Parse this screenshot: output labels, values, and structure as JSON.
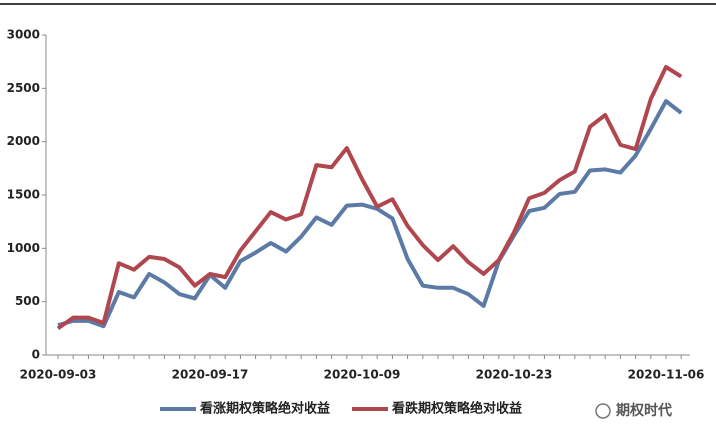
{
  "chart_data": {
    "type": "line",
    "categories": [
      "2020-09-03",
      null,
      null,
      null,
      null,
      null,
      null,
      null,
      null,
      null,
      "2020-09-17",
      null,
      null,
      null,
      null,
      null,
      null,
      null,
      null,
      null,
      "2020-10-09",
      null,
      null,
      null,
      null,
      null,
      null,
      null,
      null,
      null,
      "2020-10-23",
      null,
      null,
      null,
      null,
      null,
      null,
      null,
      null,
      null,
      "2020-11-06",
      null
    ],
    "series": [
      {
        "name": "看涨期权策略绝对收益",
        "color": "#5b7aa6",
        "values": [
          280,
          320,
          320,
          270,
          590,
          540,
          760,
          680,
          570,
          530,
          750,
          630,
          880,
          960,
          1050,
          970,
          1110,
          1290,
          1220,
          1400,
          1410,
          1370,
          1280,
          900,
          650,
          630,
          630,
          570,
          460,
          880,
          1120,
          1350,
          1380,
          1510,
          1530,
          1730,
          1740,
          1710,
          1870,
          2120,
          2380,
          2270
        ]
      },
      {
        "name": "看跌期权策略绝对收益",
        "color": "#b0474f",
        "values": [
          250,
          350,
          350,
          300,
          860,
          800,
          920,
          900,
          820,
          650,
          760,
          730,
          980,
          1160,
          1340,
          1270,
          1320,
          1780,
          1760,
          1940,
          1650,
          1390,
          1460,
          1210,
          1030,
          890,
          1020,
          870,
          760,
          890,
          1150,
          1470,
          1520,
          1640,
          1720,
          2140,
          2250,
          1970,
          1930,
          2400,
          2700,
          2610
        ]
      }
    ],
    "ylim": [
      0,
      3000
    ],
    "yticks": [
      0,
      500,
      1000,
      1500,
      2000,
      2500,
      3000
    ],
    "grid": false,
    "legend": "bottom",
    "watermark": "期权时代"
  }
}
